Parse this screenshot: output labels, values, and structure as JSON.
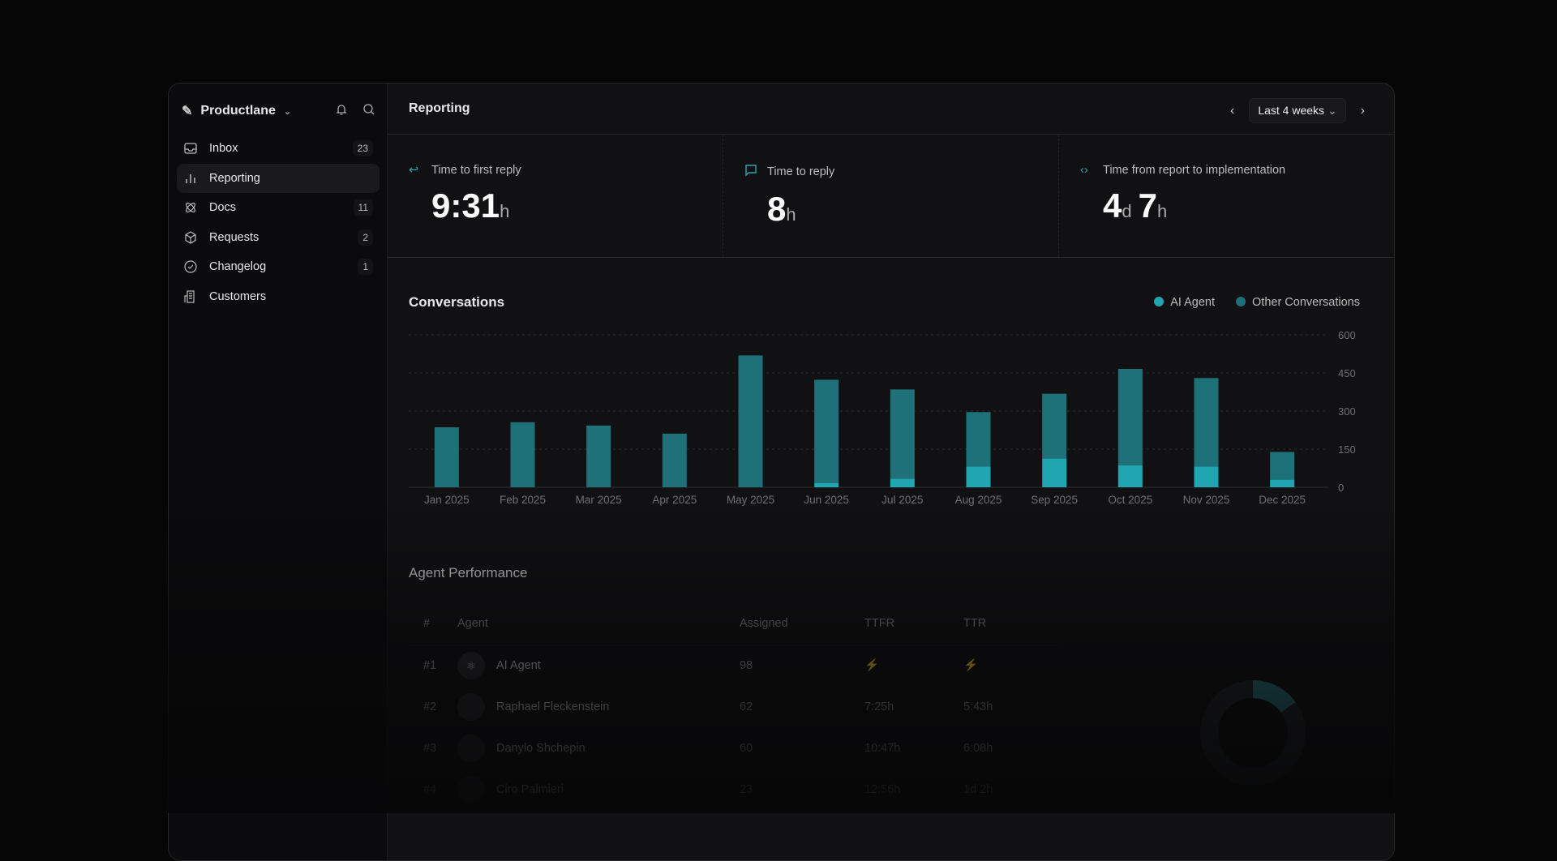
{
  "sidebar": {
    "workspace": "Productlane",
    "items": [
      {
        "label": "Inbox",
        "icon": "inbox-icon",
        "count": "23"
      },
      {
        "label": "Reporting",
        "icon": "bar-chart-icon",
        "count": ""
      },
      {
        "label": "Docs",
        "icon": "atom-icon",
        "count": "11"
      },
      {
        "label": "Requests",
        "icon": "cube-icon",
        "count": "2"
      },
      {
        "label": "Changelog",
        "icon": "check-circle-icon",
        "count": "1"
      },
      {
        "label": "Customers",
        "icon": "building-icon",
        "count": ""
      }
    ]
  },
  "header": {
    "title": "Reporting",
    "range": "Last 4 weeks"
  },
  "metrics": [
    {
      "label": "Time to first reply",
      "value": "9:31",
      "unit": "h"
    },
    {
      "label": "Time to reply",
      "value": "8",
      "unit": "h"
    },
    {
      "label": "Time from report to implementation",
      "value": "4",
      "unit": "d",
      "value2": "7",
      "unit2": "h"
    }
  ],
  "chart_data": {
    "type": "bar",
    "stacked": true,
    "title": "Conversations",
    "categories": [
      "Jan 2025",
      "Feb 2025",
      "Mar 2025",
      "Apr 2025",
      "May 2025",
      "Jun 2025",
      "Jul 2025",
      "Aug 2025",
      "Sep 2025",
      "Oct 2025",
      "Nov 2025",
      "Dec 2025"
    ],
    "series": [
      {
        "name": "AI Agent",
        "color": "#1fa6b1",
        "values": [
          0,
          0,
          0,
          0,
          0,
          17,
          34,
          82,
          113,
          86,
          82,
          30
        ]
      },
      {
        "name": "Other Conversations",
        "color": "#1e7179",
        "values": [
          236,
          256,
          243,
          211,
          519,
          406,
          351,
          214,
          255,
          380,
          348,
          109
        ]
      }
    ],
    "ylim": [
      0,
      600
    ],
    "yticks": [
      0,
      150,
      300,
      450,
      600
    ],
    "grid": true,
    "legend": "top-right"
  },
  "agents": {
    "title": "Agent Performance",
    "columns": [
      "#",
      "Agent",
      "Assigned",
      "TTFR",
      "TTR"
    ],
    "rows": [
      {
        "rank": "#1",
        "name": "AI Agent",
        "assigned": "98",
        "ttfr": "⚡",
        "ttr": "⚡"
      },
      {
        "rank": "#2",
        "name": "Raphael Fleckenstein",
        "assigned": "62",
        "ttfr": "7:25h",
        "ttr": "5:43h"
      },
      {
        "rank": "#3",
        "name": "Danylo Shchepin",
        "assigned": "60",
        "ttfr": "10:47h",
        "ttr": "6:08h"
      },
      {
        "rank": "#4",
        "name": "Ciro Palmieri",
        "assigned": "23",
        "ttfr": "12:56h",
        "ttr": "1d 2h"
      }
    ]
  }
}
